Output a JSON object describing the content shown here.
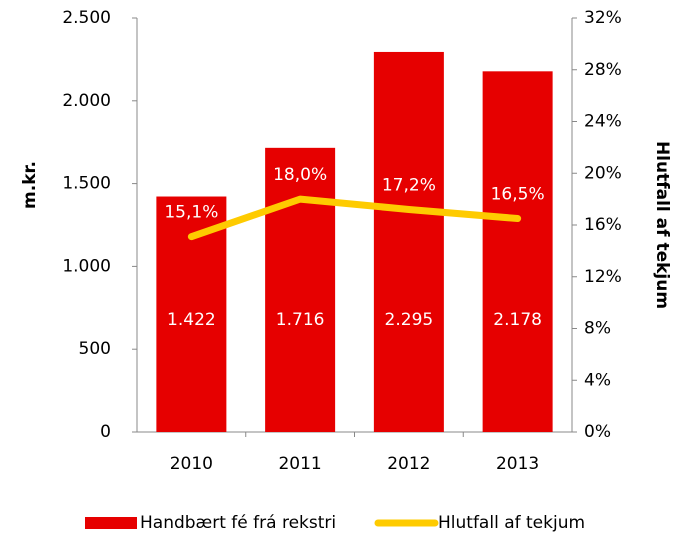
{
  "chart_data": {
    "type": "bar",
    "categories": [
      "2010",
      "2011",
      "2012",
      "2013"
    ],
    "series": [
      {
        "name": "Handbært fé frá rekstri",
        "type": "bar",
        "color": "#e60000",
        "values": [
          1422,
          1716,
          2295,
          2178
        ],
        "value_labels": [
          "1.422",
          "1.716",
          "2.295",
          "2.178"
        ]
      },
      {
        "name": "Hlutfall af tekjum",
        "type": "line",
        "axis": "y2",
        "color": "#fecb00",
        "values": [
          15.1,
          18.0,
          17.2,
          16.5
        ],
        "value_labels": [
          "15,1%",
          "18,0%",
          "17,2%",
          "16,5%"
        ]
      }
    ],
    "ylabel": "m.kr.",
    "y2label": "Hlutfall af tekjum",
    "ylim": [
      0,
      2500
    ],
    "yticks": [
      {
        "value": 0,
        "label": "0"
      },
      {
        "value": 500,
        "label": "500"
      },
      {
        "value": 1000,
        "label": "1.000"
      },
      {
        "value": 1500,
        "label": "1.500"
      },
      {
        "value": 2000,
        "label": "2.000"
      },
      {
        "value": 2500,
        "label": "2.500"
      }
    ],
    "y2lim": [
      0,
      32
    ],
    "y2ticks": [
      {
        "value": 0,
        "label": "0%"
      },
      {
        "value": 4,
        "label": "4%"
      },
      {
        "value": 8,
        "label": "8%"
      },
      {
        "value": 12,
        "label": "12%"
      },
      {
        "value": 16,
        "label": "16%"
      },
      {
        "value": 20,
        "label": "20%"
      },
      {
        "value": 24,
        "label": "24%"
      },
      {
        "value": 28,
        "label": "28%"
      },
      {
        "value": 32,
        "label": "32%"
      }
    ],
    "legend": "bottom",
    "grid": false
  }
}
